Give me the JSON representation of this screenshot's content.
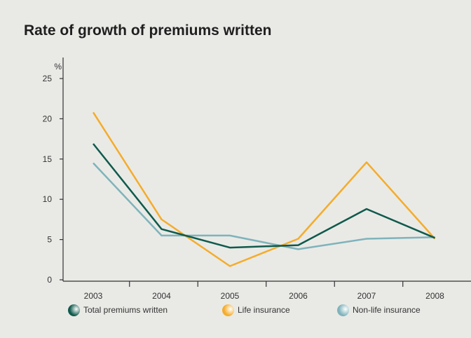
{
  "chart_data": {
    "type": "line",
    "title": "Rate of growth of premiums written",
    "ylabel": "%",
    "xlabel": "",
    "ylim": [
      0,
      25
    ],
    "yticks": [
      "0",
      "5",
      "10",
      "15",
      "20",
      "25"
    ],
    "categories": [
      "2003",
      "2004",
      "2005",
      "2006",
      "2007",
      "2008"
    ],
    "grid": false,
    "legend_position": "bottom",
    "series": [
      {
        "name": "Total premiums written",
        "color": "#0f5a4c",
        "values": [
          16.9,
          6.3,
          4.0,
          4.3,
          8.8,
          5.2
        ]
      },
      {
        "name": "Life insurance",
        "color": "#f5ac2b",
        "values": [
          20.8,
          7.5,
          1.7,
          5.1,
          14.6,
          5.1
        ]
      },
      {
        "name": "Non-life insurance",
        "color": "#7fb3bb",
        "values": [
          14.5,
          5.5,
          5.5,
          3.8,
          5.1,
          5.3
        ]
      }
    ]
  }
}
